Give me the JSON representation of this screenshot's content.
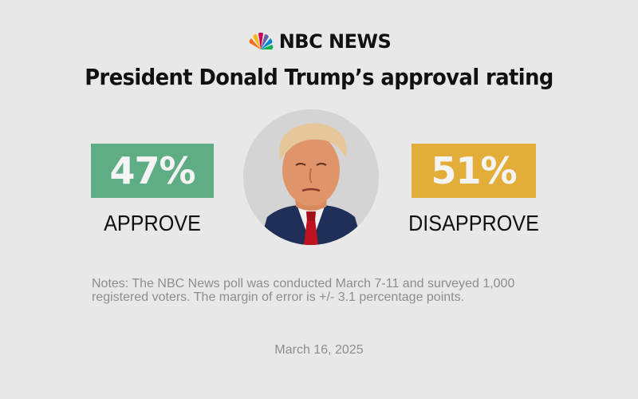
{
  "brand": {
    "name": "NBC NEWS",
    "logo_icon": "nbc-peacock-icon"
  },
  "title": "President Donald Trump’s approval rating",
  "chart_data": {
    "type": "bar",
    "categories": [
      "APPROVE",
      "DISAPPROVE"
    ],
    "values": [
      47,
      51
    ],
    "value_labels": [
      "47%",
      "51%"
    ],
    "colors": [
      "#5fad85",
      "#e3ad3a"
    ],
    "title": "President Donald Trump’s approval rating"
  },
  "portrait": {
    "alt": "portrait-photo"
  },
  "notes": "Notes: The NBC News poll was conducted March 7-11 and surveyed 1,000 registered voters. The margin of error is +/- 3.1 percentage points.",
  "date": "March 16, 2025"
}
